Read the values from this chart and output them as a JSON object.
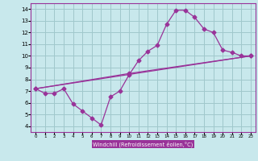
{
  "bg_color": "#c8e8ec",
  "grid_color": "#a0c8cc",
  "line_color": "#993399",
  "xlabel": "Windchill (Refroidissement éolien,°C)",
  "xlabel_bg": "#993399",
  "xlabel_fg": "#ffffff",
  "xlim": [
    -0.5,
    23.5
  ],
  "ylim": [
    3.5,
    14.5
  ],
  "xticks": [
    0,
    1,
    2,
    3,
    4,
    5,
    6,
    7,
    8,
    9,
    10,
    11,
    12,
    13,
    14,
    15,
    16,
    17,
    18,
    19,
    20,
    21,
    22,
    23
  ],
  "yticks": [
    4,
    5,
    6,
    7,
    8,
    9,
    10,
    11,
    12,
    13,
    14
  ],
  "curve_x": [
    0,
    1,
    2,
    3,
    4,
    5,
    6,
    7,
    8,
    9,
    10,
    11,
    12,
    13,
    14,
    15,
    16,
    17,
    18,
    19,
    20,
    21,
    22,
    23
  ],
  "curve_y": [
    7.2,
    6.8,
    6.8,
    7.2,
    5.9,
    5.3,
    4.7,
    4.1,
    6.5,
    7.0,
    8.4,
    9.6,
    10.4,
    10.9,
    12.7,
    13.9,
    13.9,
    13.3,
    12.3,
    12.0,
    10.5,
    10.3,
    10.0,
    10.0
  ],
  "trend1_x": [
    0,
    23
  ],
  "trend1_y": [
    7.2,
    10.0
  ],
  "trend2_x": [
    0,
    10,
    23
  ],
  "trend2_y": [
    7.2,
    8.5,
    10.0
  ]
}
